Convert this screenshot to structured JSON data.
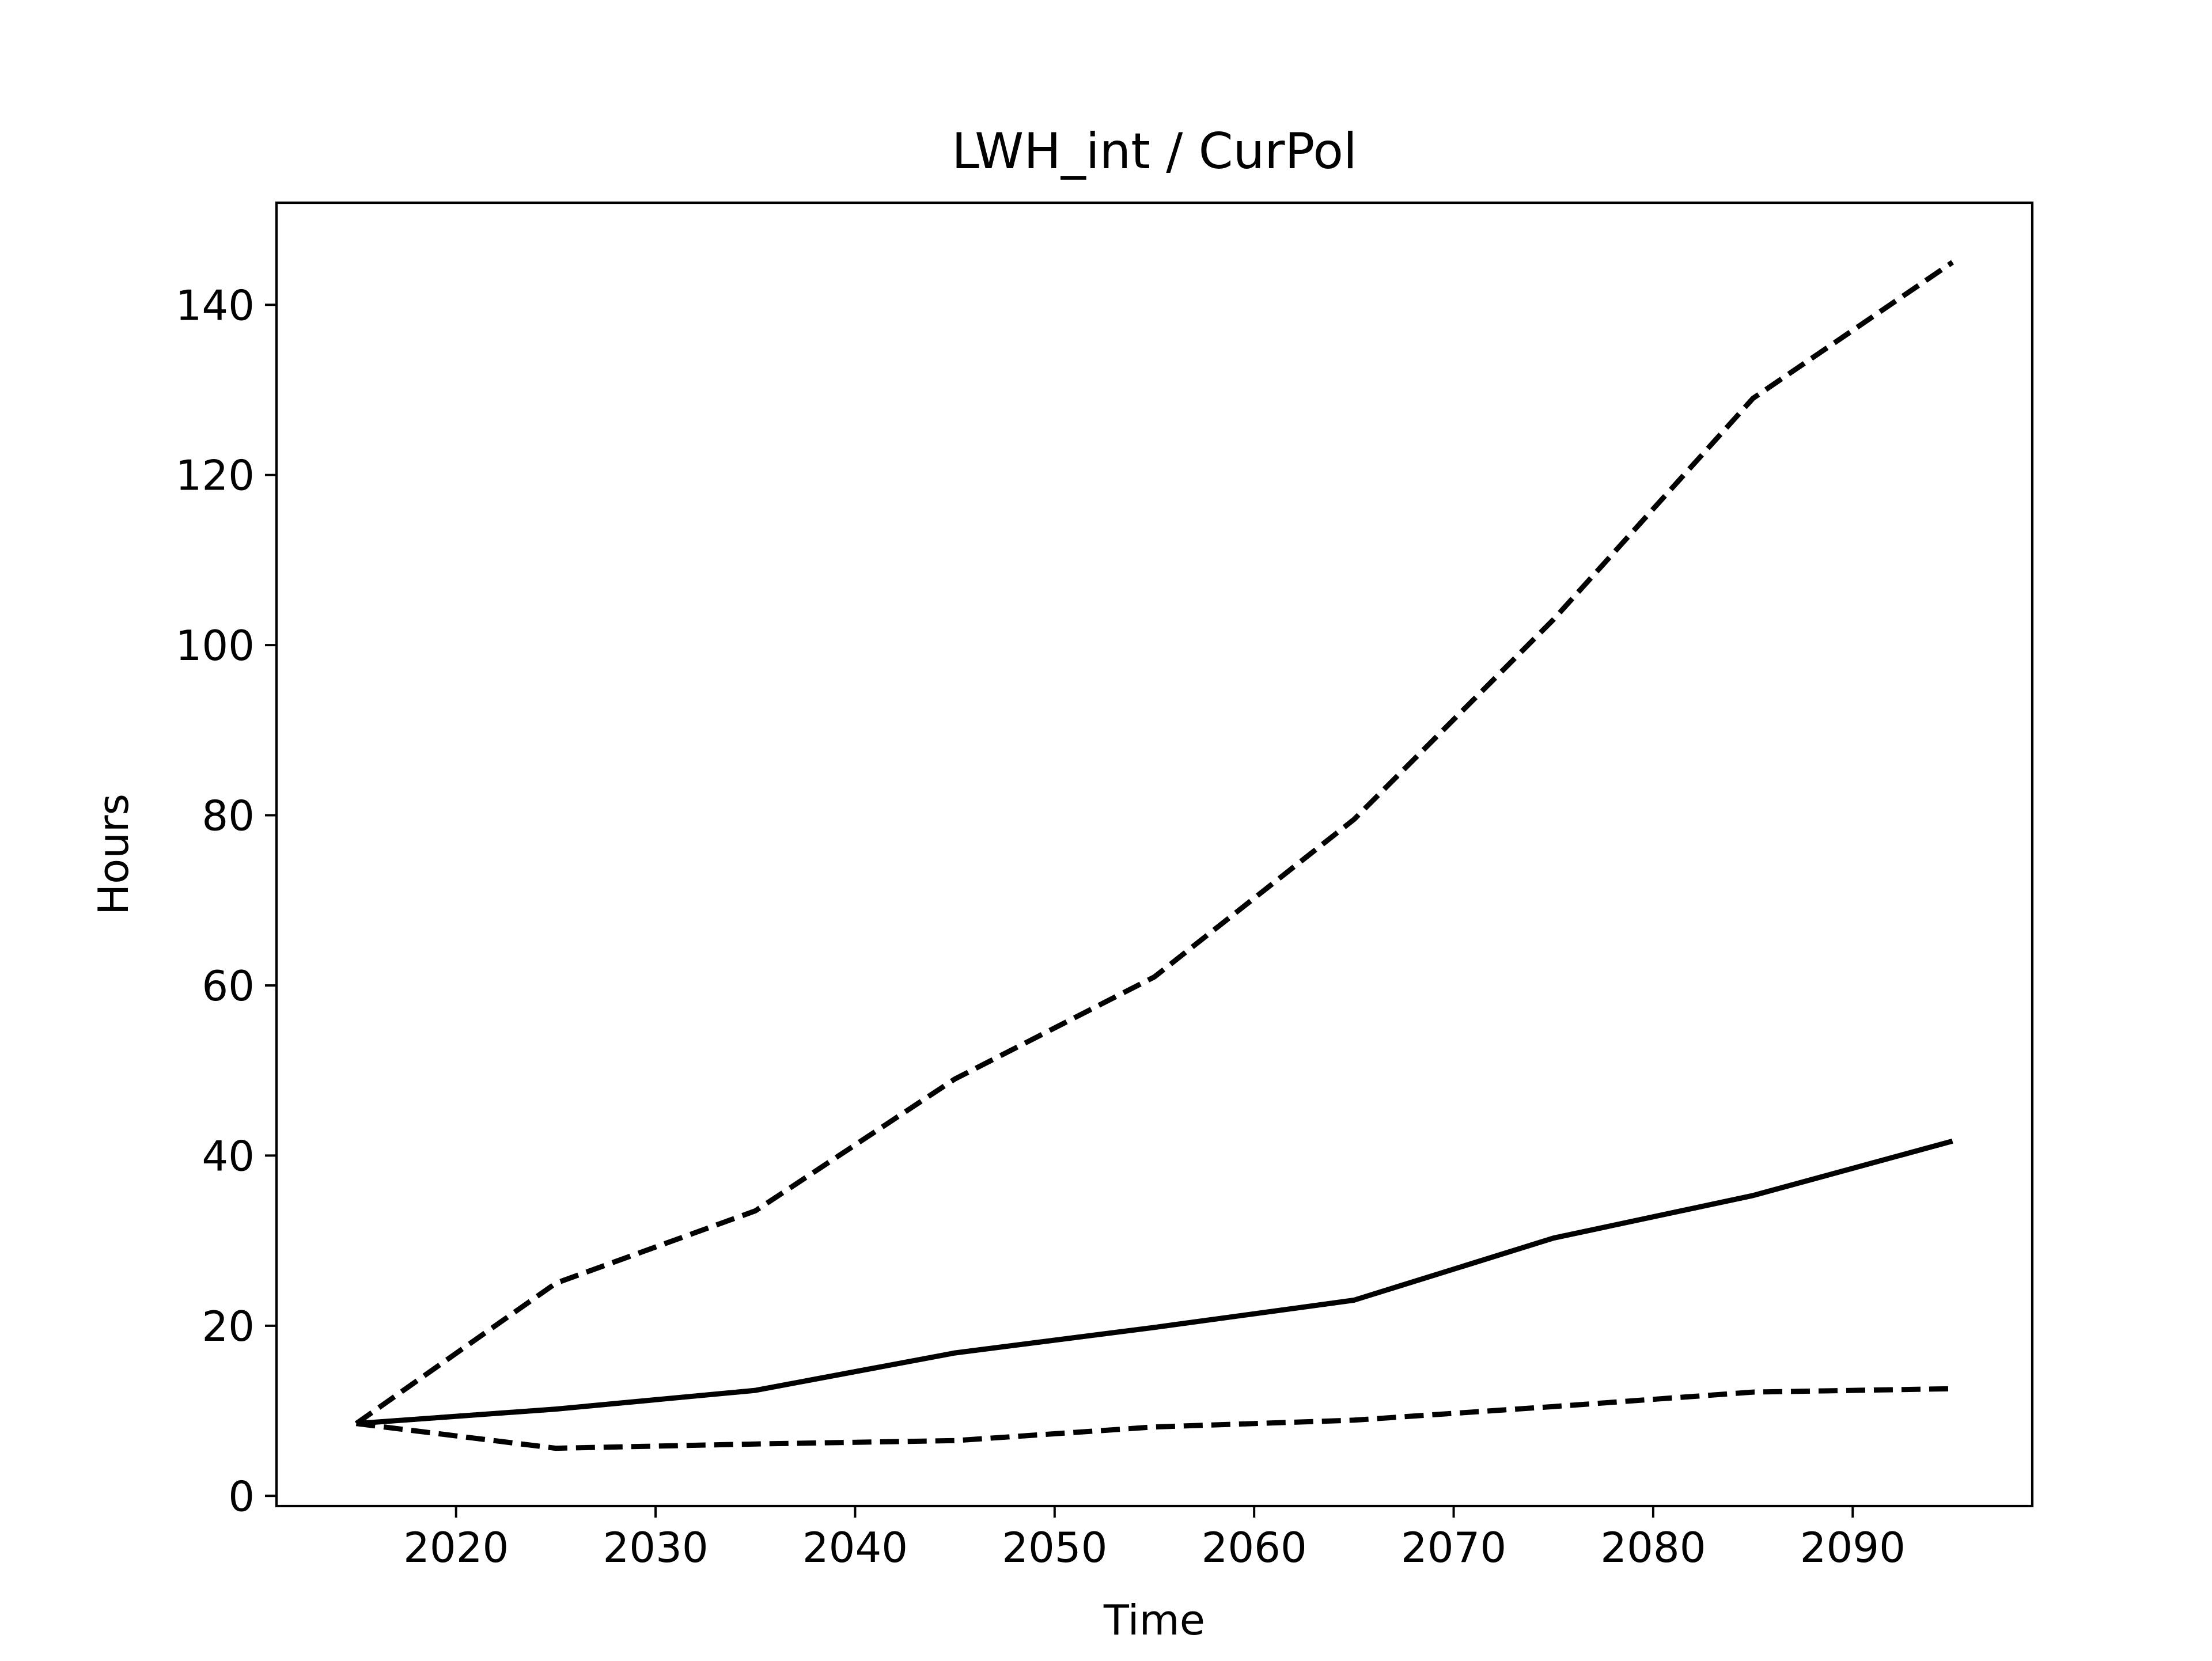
{
  "chart_data": {
    "type": "line",
    "title": "LWH_int / CurPol",
    "xlabel": "Time",
    "ylabel": "Hours",
    "xlim": [
      2011,
      2099
    ],
    "ylim": [
      -1.2,
      152
    ],
    "xticks": [
      2020,
      2030,
      2040,
      2050,
      2060,
      2070,
      2080,
      2090
    ],
    "yticks": [
      0,
      20,
      40,
      60,
      80,
      100,
      120,
      140
    ],
    "grid": false,
    "legend": "none",
    "x": [
      2015,
      2025,
      2035,
      2045,
      2055,
      2065,
      2075,
      2085,
      2095
    ],
    "series": [
      {
        "style": "solid",
        "color": "#000000",
        "values": [
          8.5,
          10.2,
          12.4,
          16.8,
          19.8,
          23.0,
          30.3,
          35.3,
          41.7
        ]
      },
      {
        "style": "dashed",
        "color": "#000000",
        "values": [
          8.5,
          25.0,
          33.5,
          49.0,
          61.0,
          79.5,
          103.0,
          129.0,
          145.0
        ]
      },
      {
        "style": "dashed",
        "color": "#000000",
        "values": [
          8.5,
          5.6,
          6.1,
          6.5,
          8.1,
          8.9,
          10.5,
          12.2,
          12.6
        ]
      }
    ]
  }
}
